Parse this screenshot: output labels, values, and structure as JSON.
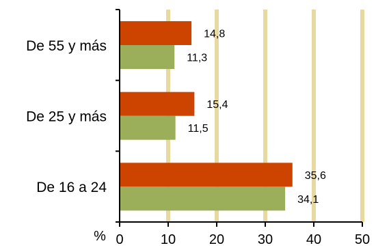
{
  "chart_data": {
    "type": "bar",
    "orientation": "horizontal",
    "title": "",
    "xlabel": "%",
    "ylabel": "",
    "categories": [
      "De 55 y más",
      "De 25 y más",
      "De 16 a 24"
    ],
    "series": [
      {
        "values": [
          14.8,
          15.4,
          35.6
        ],
        "labels": [
          "14,8",
          "15,4",
          "35,6"
        ],
        "color": "#CC4400"
      },
      {
        "values": [
          11.3,
          11.5,
          34.1
        ],
        "labels": [
          "11,3",
          "11,5",
          "34,1"
        ],
        "color": "#9BAF5A"
      }
    ],
    "xlim": [
      0,
      50
    ],
    "xticks": [
      0,
      10,
      20,
      30,
      40,
      50
    ],
    "xtick_labels": [
      "0",
      "10",
      "20",
      "30",
      "40",
      "50"
    ],
    "grid": "vertical",
    "grid_color": "#E8D9A0",
    "legend": "none"
  }
}
